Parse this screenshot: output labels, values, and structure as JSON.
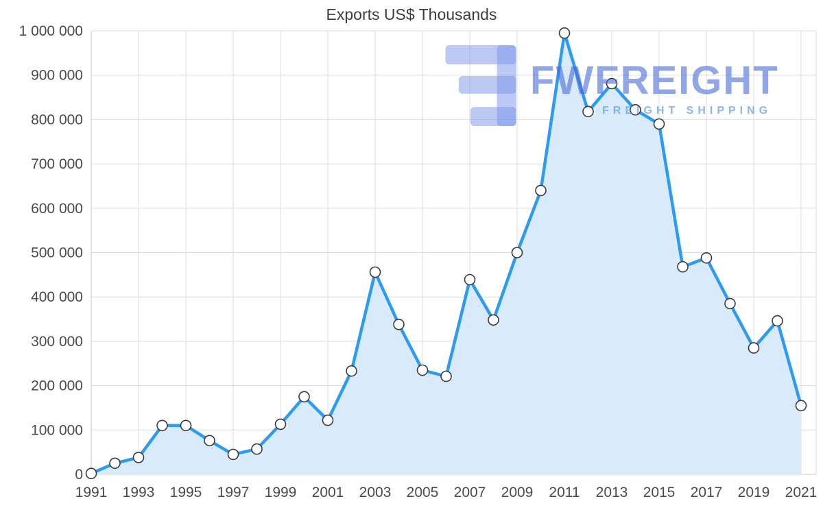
{
  "page": {
    "title": "Exports US$ Thousands"
  },
  "watermark": {
    "brand": "FWFREIGHT",
    "tagline": "FREIGHT SHIPPING",
    "colors": {
      "logo": "rgba(122, 147, 235, 0.5)",
      "brand": "rgba(72, 106, 215, 0.6)",
      "tagline": "rgba(100, 160, 230, 0.75)"
    }
  },
  "chart_data": {
    "type": "area",
    "title": "Exports US$ Thousands",
    "xlabel": "",
    "ylabel": "",
    "x": [
      1991,
      1992,
      1993,
      1994,
      1995,
      1996,
      1997,
      1998,
      1999,
      2000,
      2001,
      2002,
      2003,
      2004,
      2005,
      2006,
      2007,
      2008,
      2009,
      2010,
      2011,
      2012,
      2013,
      2014,
      2015,
      2016,
      2017,
      2018,
      2019,
      2020,
      2021
    ],
    "values": [
      2000,
      25000,
      38000,
      110000,
      110000,
      76000,
      45000,
      57000,
      113000,
      175000,
      122000,
      233000,
      456000,
      338000,
      235000,
      221000,
      439000,
      348000,
      500000,
      640000,
      995000,
      818000,
      881000,
      822000,
      790000,
      468000,
      488000,
      385000,
      285000,
      346000,
      155000
    ],
    "ylim": [
      0,
      1000000
    ],
    "ytick_step": 100000,
    "xticks": [
      1991,
      1993,
      1995,
      1997,
      1999,
      2001,
      2003,
      2005,
      2007,
      2009,
      2011,
      2013,
      2015,
      2017,
      2019,
      2021
    ],
    "grid": true,
    "legend": "none",
    "marker_style": "open-circle",
    "colors": {
      "line": "#2e9bf2",
      "fill": "#d9eafa",
      "marker_fill": "#ffffff",
      "marker_stroke": "#3a3a3a",
      "grid": "#dcdcdc",
      "axis_line": "#c9c9c9",
      "tick_text": "#4a4a4a",
      "title_text": "#3d3d3d"
    }
  }
}
